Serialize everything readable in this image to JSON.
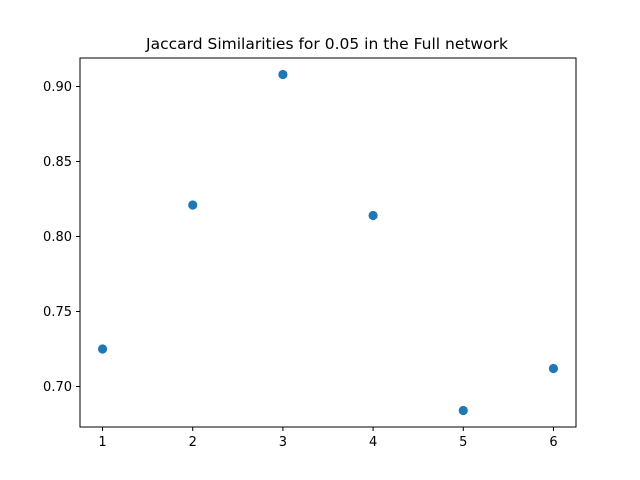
{
  "chart_data": {
    "type": "scatter",
    "title": "Jaccard Similarities for 0.05 in the Full network",
    "xlabel": "",
    "ylabel": "",
    "x": [
      1,
      2,
      3,
      4,
      5,
      6
    ],
    "series": [
      {
        "values": [
          0.725,
          0.821,
          0.908,
          0.814,
          0.684,
          0.712
        ],
        "color": "#1f77b4"
      }
    ],
    "xlim": [
      0.75,
      6.25
    ],
    "ylim": [
      0.673,
      0.919
    ],
    "xticks": [
      1,
      2,
      3,
      4,
      5,
      6
    ],
    "xtick_labels": [
      "1",
      "2",
      "3",
      "4",
      "5",
      "6"
    ],
    "yticks": [
      0.7,
      0.75,
      0.8,
      0.85,
      0.9
    ],
    "ytick_labels": [
      "0.70",
      "0.75",
      "0.80",
      "0.85",
      "0.90"
    ],
    "grid": false,
    "legend": "none"
  }
}
